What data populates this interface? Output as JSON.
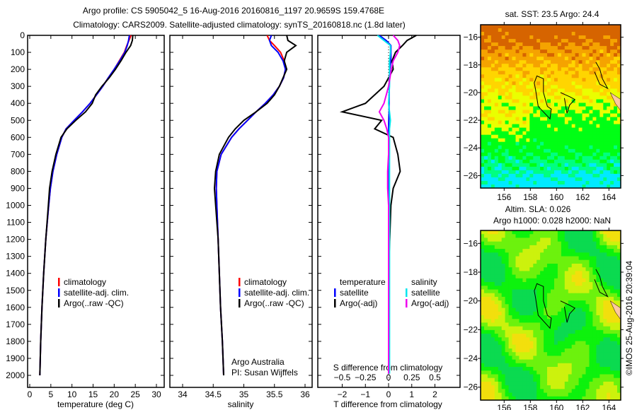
{
  "title_line1": "Argo profile: CS 5905042_5 16-Aug-2016 20160816_1197 20.9659S 159.4768E",
  "title_line2": "Climatology: CARS2009. Satellite-adjusted climatology: synTS_20160818.nc (1.8d later)",
  "side_label": "©IMOS 25-Aug-2016 20:39:04",
  "colors": {
    "climatology": "#ff0000",
    "satellite": "#0000ff",
    "argo": "#000000",
    "s_satellite": "#00e5ee",
    "s_argo": "#ee00ee"
  },
  "chart_data": [
    {
      "type": "line",
      "id": "temperature",
      "xlabel": "temperature (deg C)",
      "xlim": [
        -1,
        31
      ],
      "ylim": [
        0,
        2000
      ],
      "xticks": [
        0,
        5,
        10,
        15,
        20,
        25,
        30
      ],
      "yticks": [
        0,
        100,
        200,
        300,
        400,
        500,
        600,
        700,
        800,
        900,
        1000,
        1100,
        1200,
        1300,
        1400,
        1500,
        1600,
        1700,
        1800,
        1900,
        2000
      ],
      "legend": [
        "climatology",
        "satellite-adj. clim.",
        "Argo(..raw -QC)"
      ],
      "depth": [
        0,
        30,
        60,
        100,
        150,
        200,
        250,
        300,
        350,
        400,
        450,
        500,
        550,
        600,
        700,
        800,
        900,
        1000,
        1200,
        1400,
        1600,
        1800,
        2000
      ],
      "series": [
        {
          "name": "climatology",
          "values": [
            24,
            23.5,
            23,
            22.4,
            21.2,
            20,
            18.6,
            17.3,
            15.8,
            14.3,
            12.5,
            10.5,
            8.6,
            7.6,
            6.4,
            5.5,
            4.9,
            4.5,
            3.8,
            3.3,
            2.9,
            2.6,
            2.4
          ]
        },
        {
          "name": "satellite-adj. clim.",
          "values": [
            23.6,
            23.4,
            23.1,
            22.5,
            21.3,
            20,
            18.6,
            17.3,
            15.8,
            14.3,
            12.5,
            10.5,
            8.6,
            7.6,
            6.4,
            5.5,
            4.9,
            4.5,
            3.8,
            3.3,
            2.9,
            2.6,
            2.4
          ]
        },
        {
          "name": "Argo(..raw -QC)",
          "values": [
            24.4,
            24.3,
            23.9,
            22.8,
            21.6,
            20.3,
            18.8,
            17.1,
            15.6,
            14.8,
            13.2,
            10.9,
            8.8,
            7.4,
            6.2,
            5.3,
            4.7,
            4.4,
            3.8,
            3.3,
            2.9,
            2.6,
            2.4
          ]
        }
      ]
    },
    {
      "type": "line",
      "id": "salinity",
      "xlabel": "salinity",
      "xlim": [
        33.7,
        36.05
      ],
      "ylim": [
        0,
        2000
      ],
      "xticks": [
        34,
        34.5,
        35,
        35.5,
        36
      ],
      "legend": [
        "climatology",
        "satellite-adj. clim.",
        "Argo(..raw -QC)"
      ],
      "annotation": [
        "Argo Australia",
        "PI: Susan Wijffels"
      ],
      "depth": [
        0,
        30,
        60,
        100,
        150,
        200,
        250,
        300,
        350,
        400,
        450,
        500,
        550,
        600,
        700,
        800,
        900,
        1000,
        1200,
        1400,
        1600,
        1800,
        2000
      ],
      "series": [
        {
          "name": "climatology",
          "values": [
            35.38,
            35.42,
            35.5,
            35.6,
            35.66,
            35.68,
            35.65,
            35.58,
            35.48,
            35.35,
            35.2,
            35.06,
            34.92,
            34.8,
            34.63,
            34.56,
            34.55,
            34.56,
            34.58,
            34.6,
            34.62,
            34.65,
            34.67
          ]
        },
        {
          "name": "satellite-adj. clim.",
          "values": [
            35.45,
            35.42,
            35.45,
            35.56,
            35.64,
            35.68,
            35.65,
            35.58,
            35.48,
            35.35,
            35.2,
            35.06,
            34.92,
            34.8,
            34.63,
            34.56,
            34.55,
            34.56,
            34.58,
            34.6,
            34.62,
            34.65,
            34.67
          ]
        },
        {
          "name": "Argo(..raw -QC)",
          "values": [
            35.7,
            35.72,
            35.85,
            35.7,
            35.66,
            35.7,
            35.64,
            35.58,
            35.5,
            35.38,
            35.2,
            35.0,
            34.86,
            34.75,
            34.6,
            34.54,
            34.52,
            34.54,
            34.58,
            34.6,
            34.62,
            34.65,
            34.67
          ]
        }
      ]
    },
    {
      "type": "line",
      "id": "difference",
      "xlabel": "T difference from climatology",
      "xlabel2": "S difference from climatology",
      "xlim": [
        -3,
        3
      ],
      "ylim": [
        0,
        2000
      ],
      "xticks": [
        -2,
        -1,
        0,
        1,
        2
      ],
      "xticks2": [
        -0.5,
        -0.25,
        0,
        0.25,
        0.5
      ],
      "legend_t": [
        "temperature",
        "satellite",
        "Argo(-adj)"
      ],
      "legend_s": [
        "salinity",
        "satellite",
        "Argo(-adj)"
      ],
      "depth": [
        0,
        30,
        60,
        100,
        150,
        200,
        300,
        400,
        450,
        500,
        550,
        600,
        700,
        800,
        900,
        1000,
        1200,
        1400,
        1600,
        1800,
        1990
      ],
      "series": [
        {
          "name": "T satellite",
          "values": [
            -0.4,
            -0.1,
            0.1,
            0.1,
            0.1,
            0.05,
            0.03,
            0.02,
            0.02,
            0.01,
            0,
            0,
            0,
            0,
            0,
            0,
            0,
            0,
            0,
            0,
            0
          ]
        },
        {
          "name": "T Argo(-adj)",
          "values": [
            1.2,
            0.8,
            0.6,
            0.3,
            0.15,
            0.2,
            -0.2,
            -1.0,
            -2.0,
            -0.3,
            -0.6,
            0.2,
            0.4,
            0.5,
            0.2,
            0.1,
            0.05,
            0,
            0,
            0,
            0
          ]
        },
        {
          "name": "S satellite",
          "values": [
            -0.12,
            -0.05,
            0.02,
            0.02,
            0.01,
            0.01,
            0.01,
            0,
            0.01,
            0.02,
            0.01,
            0.01,
            0.01,
            0.01,
            0.01,
            0.01,
            0.01,
            0.01,
            0.01,
            0.01,
            0.01
          ]
        },
        {
          "name": "S Argo(-adj)",
          "values": [
            0.05,
            0.1,
            0.12,
            0.1,
            0.05,
            0.03,
            0,
            -0.05,
            -0.1,
            -0.05,
            -0.02,
            0,
            0,
            -0.01,
            -0.01,
            0,
            0,
            0,
            0,
            0,
            0
          ]
        }
      ]
    },
    {
      "type": "heatmap",
      "id": "sst_map",
      "title": "sat. SST: 23.5 Argo: 24.4",
      "xticks": [
        156,
        158,
        160,
        162,
        164
      ],
      "yticks": [
        -16,
        -18,
        -20,
        -22,
        -24,
        -26
      ],
      "xlim": [
        154.2,
        164.9
      ],
      "ylim": [
        -26.9,
        -15.1
      ]
    },
    {
      "type": "heatmap",
      "id": "sla_map",
      "title_line1": "Altim. SLA: 0.026",
      "title_line2": "Argo h1000: 0.028 h2000: NaN",
      "xticks": [
        156,
        158,
        160,
        162,
        164
      ],
      "yticks": [
        -16,
        -18,
        -20,
        -22,
        -24,
        -26
      ],
      "xlim": [
        154.2,
        164.9
      ],
      "ylim": [
        -26.9,
        -15.1
      ]
    }
  ]
}
